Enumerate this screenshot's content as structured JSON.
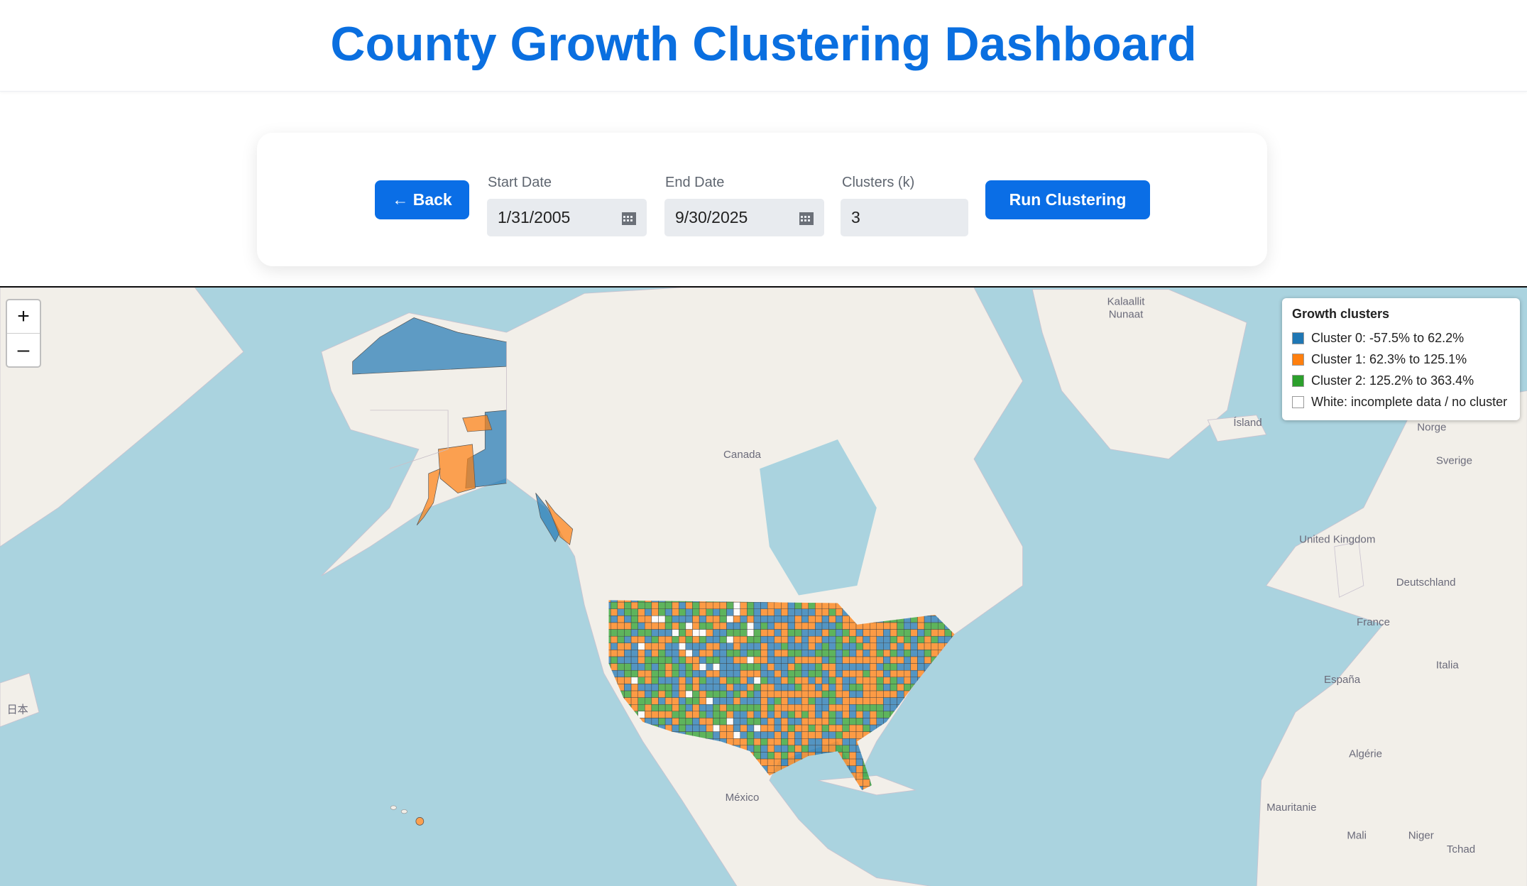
{
  "header": {
    "title": "County Growth Clustering Dashboard"
  },
  "controls": {
    "back": "← Back",
    "start_date": {
      "label": "Start Date",
      "value": "1/31/2005"
    },
    "end_date": {
      "label": "End Date",
      "value": "9/30/2025"
    },
    "clusters": {
      "label": "Clusters (k)",
      "value": "3"
    },
    "run": "Run Clustering"
  },
  "map": {
    "zoom_in": "+",
    "zoom_out": "–",
    "legend": {
      "title": "Growth clusters",
      "items": [
        {
          "label": "Cluster 0: -57.5% to 62.2%",
          "color": "#1f77b4"
        },
        {
          "label": "Cluster 1: 62.3% to 125.1%",
          "color": "#ff7f0e"
        },
        {
          "label": "Cluster 2: 125.2% to 363.4%",
          "color": "#2ca02c"
        },
        {
          "label": "White: incomplete data / no cluster",
          "color": "#ffffff"
        }
      ]
    },
    "place_labels": [
      "Kalaallit",
      "Nunaat",
      "Canada",
      "Ísland",
      "Norge",
      "Sverige",
      "United Kingdom",
      "Deutschland",
      "France",
      "España",
      "Italia",
      "Algérie",
      "Mauritanie",
      "Mali",
      "Niger",
      "Tchad",
      "México",
      "日本"
    ]
  }
}
